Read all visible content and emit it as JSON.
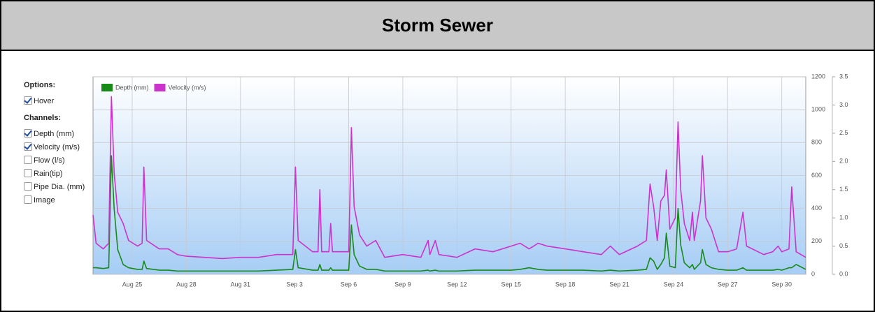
{
  "header": {
    "title": "Storm Sewer"
  },
  "sidebar": {
    "options_title": "Options:",
    "options": [
      {
        "label": "Hover",
        "checked": true
      }
    ],
    "channels_title": "Channels:",
    "channels": [
      {
        "label": "Depth (mm)",
        "checked": true
      },
      {
        "label": "Velocity (m/s)",
        "checked": true
      },
      {
        "label": "Flow (l/s)",
        "checked": false
      },
      {
        "label": "Rain(tip)",
        "checked": false
      },
      {
        "label": "Pipe Dia. (mm)",
        "checked": false
      },
      {
        "label": "Image",
        "checked": false
      }
    ]
  },
  "chart_data": {
    "type": "line",
    "x": [
      22.83,
      23.0,
      23.4,
      23.7,
      23.85,
      24.0,
      24.2,
      24.5,
      24.8,
      25.3,
      25.55,
      25.65,
      25.8,
      26.5,
      27.0,
      27.5,
      28.0,
      29,
      30,
      31,
      32,
      33,
      33.9,
      34.05,
      34.2,
      35.0,
      35.3,
      35.4,
      35.5,
      35.9,
      36.0,
      36.1,
      37.0,
      37.15,
      37.3,
      37.6,
      38,
      38.5,
      39,
      40,
      41,
      41.4,
      41.5,
      41.8,
      42,
      43,
      44,
      45,
      46,
      46.5,
      47,
      47.5,
      48,
      49,
      50,
      51,
      51.5,
      52,
      53,
      53.5,
      53.7,
      53.9,
      54.1,
      54.3,
      54.5,
      54.6,
      54.8,
      55.1,
      55.25,
      55.4,
      55.6,
      55.9,
      56.05,
      56.15,
      56.5,
      56.6,
      56.8,
      57.1,
      57.5,
      58,
      58.5,
      58.85,
      59.05,
      60,
      60.5,
      60.8,
      61.0,
      61.4,
      61.55,
      61.8,
      62.33
    ],
    "series": [
      {
        "name": "Depth (mm)",
        "color": "#178a17",
        "values": [
          40,
          40,
          35,
          40,
          720,
          400,
          150,
          60,
          40,
          30,
          30,
          80,
          35,
          25,
          25,
          20,
          20,
          20,
          20,
          20,
          20,
          25,
          30,
          150,
          40,
          25,
          25,
          60,
          25,
          25,
          40,
          25,
          25,
          300,
          120,
          50,
          30,
          30,
          20,
          20,
          20,
          25,
          20,
          25,
          20,
          20,
          25,
          25,
          25,
          30,
          40,
          30,
          25,
          25,
          25,
          20,
          25,
          20,
          25,
          30,
          100,
          80,
          30,
          60,
          100,
          250,
          50,
          40,
          400,
          180,
          70,
          40,
          60,
          30,
          70,
          150,
          60,
          40,
          30,
          25,
          25,
          40,
          25,
          25,
          25,
          30,
          25,
          40,
          40,
          60,
          30
        ]
      },
      {
        "name": "Velocity (m/s)",
        "color": "#cc33cc",
        "axis": "y2",
        "values": [
          1.05,
          0.55,
          0.45,
          0.55,
          3.15,
          1.8,
          1.1,
          0.9,
          0.6,
          0.5,
          0.55,
          1.9,
          0.6,
          0.45,
          0.45,
          0.35,
          0.32,
          0.3,
          0.28,
          0.3,
          0.3,
          0.35,
          0.35,
          1.9,
          0.6,
          0.4,
          0.4,
          1.5,
          0.4,
          0.4,
          0.9,
          0.4,
          0.4,
          2.6,
          1.2,
          0.7,
          0.5,
          0.6,
          0.3,
          0.35,
          0.3,
          0.6,
          0.35,
          0.6,
          0.35,
          0.3,
          0.45,
          0.4,
          0.5,
          0.55,
          0.45,
          0.55,
          0.5,
          0.45,
          0.4,
          0.35,
          0.5,
          0.35,
          0.5,
          0.6,
          1.6,
          1.2,
          0.6,
          1.3,
          1.4,
          1.85,
          0.8,
          1.0,
          2.7,
          1.5,
          0.9,
          0.6,
          1.1,
          0.6,
          1.3,
          2.1,
          1.0,
          0.8,
          0.4,
          0.4,
          0.45,
          1.1,
          0.5,
          0.35,
          0.4,
          0.5,
          0.4,
          0.45,
          1.55,
          0.4,
          0.3
        ]
      }
    ],
    "xlim": [
      22.83,
      62.33
    ],
    "xticks": [
      {
        "value": 25,
        "label": "Aug 25"
      },
      {
        "value": 28,
        "label": "Aug 28"
      },
      {
        "value": 31,
        "label": "Aug 31"
      },
      {
        "value": 34,
        "label": "Sep 3"
      },
      {
        "value": 37,
        "label": "Sep 6"
      },
      {
        "value": 40,
        "label": "Sep 9"
      },
      {
        "value": 43,
        "label": "Sep 12"
      },
      {
        "value": 46,
        "label": "Sep 15"
      },
      {
        "value": 49,
        "label": "Sep 18"
      },
      {
        "value": 52,
        "label": "Sep 21"
      },
      {
        "value": 55,
        "label": "Sep 24"
      },
      {
        "value": 58,
        "label": "Sep 27"
      },
      {
        "value": 61,
        "label": "Sep 30"
      }
    ],
    "ylim": [
      0,
      1200
    ],
    "yticks": [
      0,
      200,
      400,
      600,
      800,
      1000,
      1200
    ],
    "y2lim": [
      0,
      3.5
    ],
    "y2ticks": [
      {
        "value": 0,
        "label": "0.0"
      },
      {
        "value": 0.5,
        "label": "0.5"
      },
      {
        "value": 1,
        "label": "1.0"
      },
      {
        "value": 1.5,
        "label": "1.5"
      },
      {
        "value": 2,
        "label": "2.0"
      },
      {
        "value": 2.5,
        "label": "2.5"
      },
      {
        "value": 3,
        "label": "3.0"
      },
      {
        "value": 3.5,
        "label": "3.5"
      }
    ],
    "grid": true,
    "legend": "top-left"
  }
}
